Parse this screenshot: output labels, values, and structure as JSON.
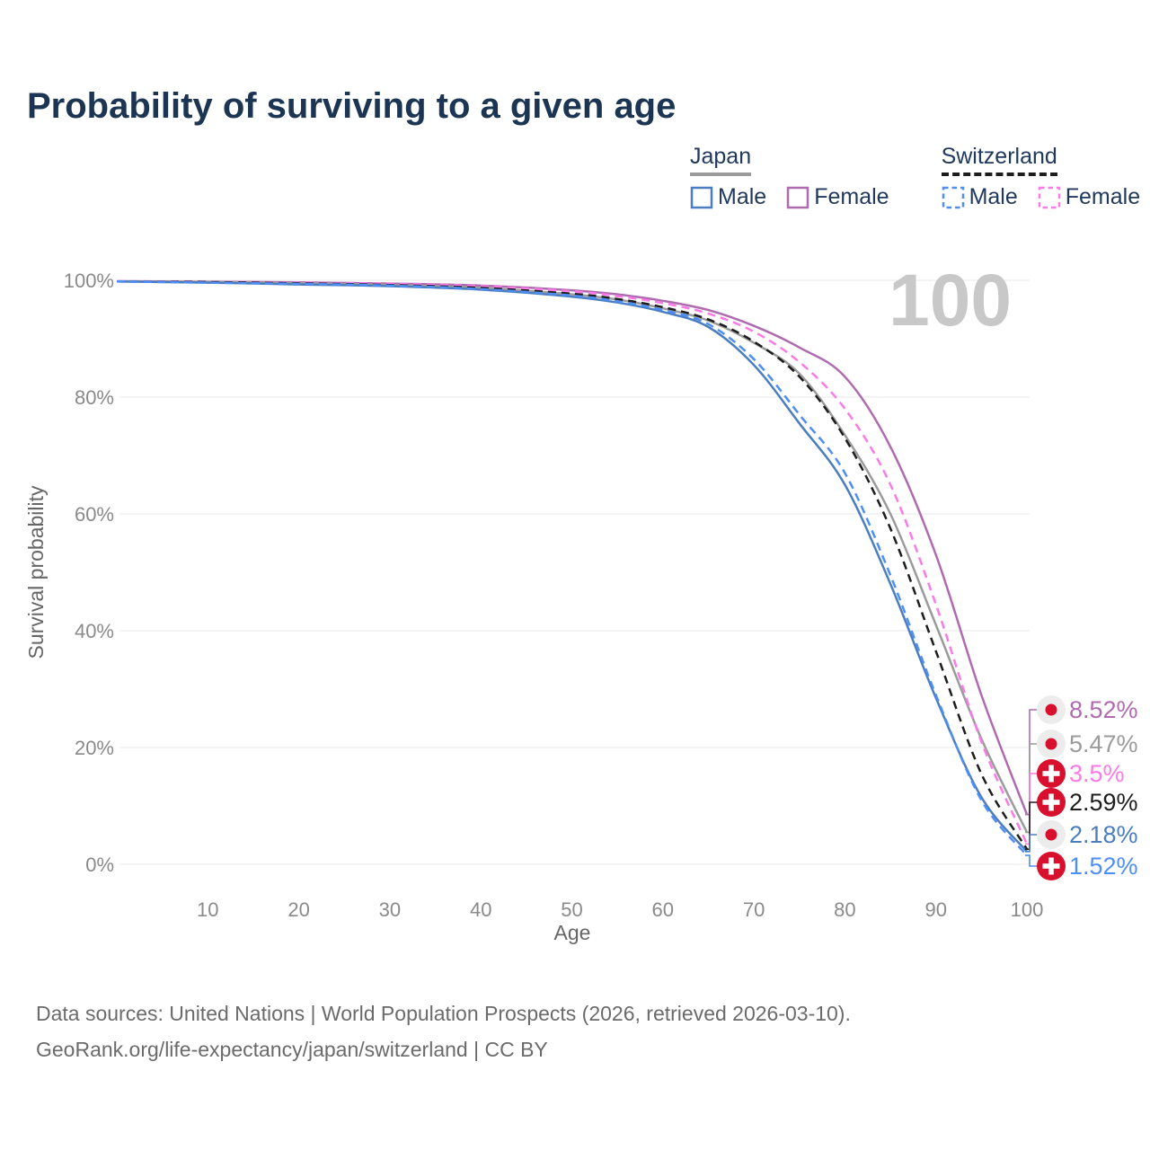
{
  "title": "Probability of surviving to a given age",
  "watermark": "100",
  "legend": {
    "groups": [
      {
        "name": "Japan",
        "line_style": "solid",
        "underline_color": "#9b9b9b",
        "items": [
          {
            "label": "Male",
            "color": "#4a7ec0"
          },
          {
            "label": "Female",
            "color": "#b06ab0"
          }
        ]
      },
      {
        "name": "Switzerland",
        "line_style": "dashed",
        "underline_color": "#1d1d1d",
        "items": [
          {
            "label": "Male",
            "color": "#4d8ef7"
          },
          {
            "label": "Female",
            "color": "#fb7ae6"
          }
        ]
      }
    ]
  },
  "axes": {
    "x_label": "Age",
    "y_label": "Survival probability",
    "x_ticks": [
      "10",
      "20",
      "30",
      "40",
      "50",
      "60",
      "70",
      "80",
      "90",
      "100"
    ],
    "y_ticks": [
      "100%",
      "80%",
      "60%",
      "40%",
      "20%",
      "0%"
    ]
  },
  "chart_data": {
    "type": "line",
    "title": "Probability of surviving to a given age",
    "xlabel": "Age",
    "ylabel": "Survival probability",
    "xlim": [
      0,
      100
    ],
    "ylim": [
      0,
      100
    ],
    "grid": "horizontal",
    "legend_position": "top-right",
    "age_marker": "100",
    "x": [
      0,
      10,
      20,
      30,
      40,
      50,
      55,
      60,
      65,
      70,
      75,
      80,
      85,
      90,
      95,
      100
    ],
    "series": [
      {
        "name": "Japan Female",
        "country": "Japan",
        "sex": "Female",
        "color": "#b06ab0",
        "dash": "solid",
        "flag": "japan",
        "end_value_label": "8.52%",
        "values": [
          99.85,
          99.75,
          99.65,
          99.45,
          99.1,
          98.3,
          97.6,
          96.5,
          94.9,
          92.2,
          88.5,
          83.5,
          71.5,
          53,
          29,
          8.52
        ]
      },
      {
        "name": "Japan Total",
        "country": "Japan",
        "sex": "Total",
        "color": "#9b9b9b",
        "dash": "solid",
        "flag": "japan",
        "end_value_label": "5.47%",
        "values": [
          99.8,
          99.7,
          99.5,
          99.2,
          98.7,
          97.6,
          96.7,
          95.2,
          93.1,
          89.3,
          84,
          73.5,
          60,
          41,
          21.5,
          5.47
        ]
      },
      {
        "name": "Switzerland Female",
        "country": "Switzerland",
        "sex": "Female",
        "color": "#fb7ae6",
        "dash": "dashed",
        "flag": "switzerland",
        "end_value_label": "3.5%",
        "values": [
          99.85,
          99.75,
          99.6,
          99.4,
          99.0,
          98.1,
          97.3,
          96.1,
          94.3,
          91.2,
          86,
          78,
          65,
          44.5,
          21,
          3.5
        ]
      },
      {
        "name": "Switzerland Total",
        "country": "Switzerland",
        "sex": "Total",
        "color": "#1d1d1d",
        "dash": "dashed",
        "flag": "switzerland",
        "end_value_label": "2.59%",
        "values": [
          99.8,
          99.7,
          99.5,
          99.2,
          98.7,
          97.7,
          96.8,
          95.4,
          93.3,
          89.5,
          83.5,
          73,
          57.5,
          36.5,
          15.5,
          2.59
        ]
      },
      {
        "name": "Japan Male",
        "country": "Japan",
        "sex": "Male",
        "color": "#4a7ec0",
        "dash": "solid",
        "flag": "japan",
        "end_value_label": "2.18%",
        "values": [
          99.8,
          99.6,
          99.3,
          99.0,
          98.4,
          97.2,
          96.2,
          94.6,
          92.0,
          85.5,
          75.5,
          65,
          48,
          28.5,
          11.5,
          2.18
        ]
      },
      {
        "name": "Switzerland Male",
        "country": "Switzerland",
        "sex": "Male",
        "color": "#4d8ef7",
        "dash": "dashed",
        "flag": "switzerland",
        "end_value_label": "1.52%",
        "values": [
          99.8,
          99.6,
          99.4,
          99.1,
          98.5,
          97.4,
          96.4,
          94.9,
          92.5,
          86.5,
          77,
          67,
          49.5,
          29,
          11,
          1.52
        ]
      }
    ]
  },
  "footer": {
    "line1": "Data sources: United Nations | World Population Prospects (2026, retrieved 2026-03-10).",
    "line2": "GeoRank.org/life-expectancy/japan/switzerland | CC BY"
  }
}
